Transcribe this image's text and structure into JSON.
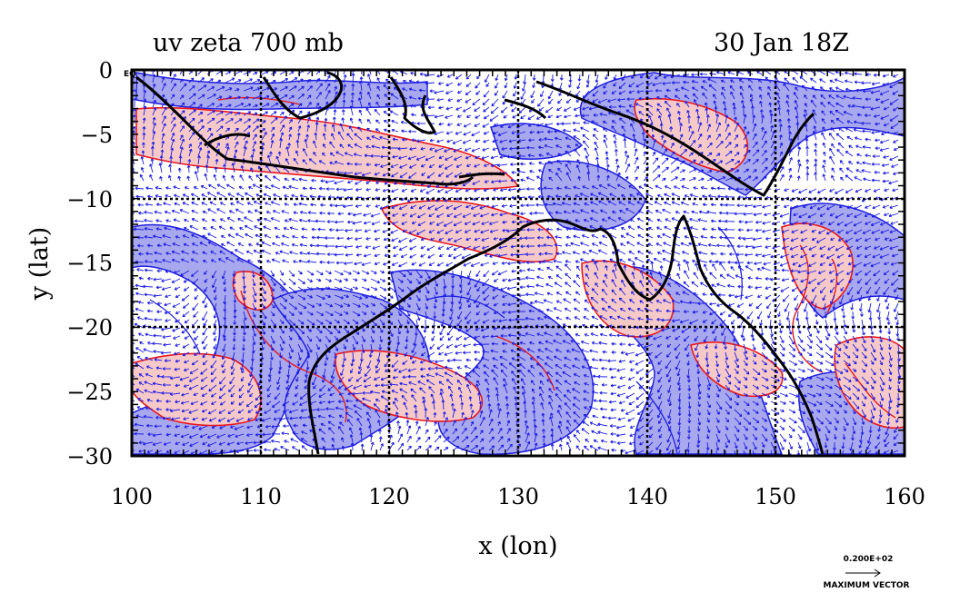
{
  "title_left": "uv zeta 700 mb",
  "title_right": "30 Jan 18Z",
  "corner_label": "EQ",
  "x_axis": {
    "label": "x (lon)",
    "range": [
      100,
      160
    ],
    "ticks": [
      "100",
      "110",
      "120",
      "130",
      "140",
      "150",
      "160"
    ]
  },
  "y_axis": {
    "label": "y (lat)",
    "range": [
      -30,
      0
    ],
    "ticks": [
      "0",
      "−5",
      "−10",
      "−15",
      "−20",
      "−25",
      "−30"
    ]
  },
  "vector_key": {
    "value": "0.200E+02",
    "label": "MAXIMUM VECTOR"
  },
  "colors": {
    "positive_vorticity_fill": "#f6c9c9",
    "positive_vorticity_contour": "#e8181c",
    "negative_vorticity_fill": "#a8a8ee",
    "negative_vorticity_contour": "#2020e0",
    "wind_vector": "#1a1ae6",
    "coastline": "#000000",
    "grid": "#000000"
  }
}
